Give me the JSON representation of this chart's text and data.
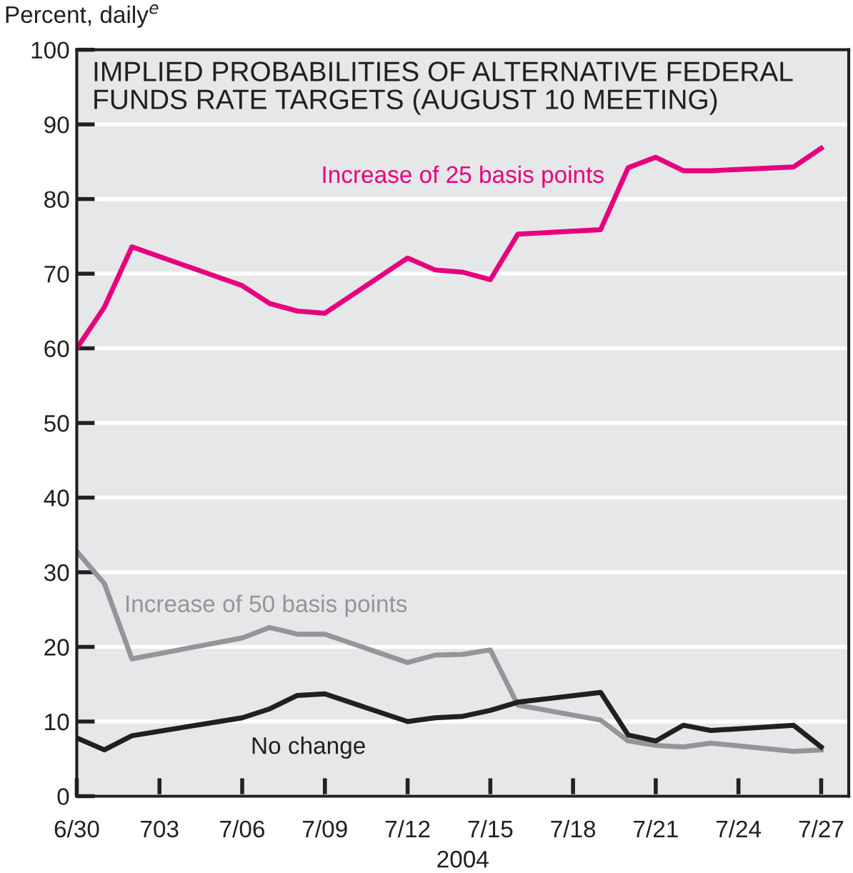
{
  "chart_data": {
    "type": "line",
    "title": "IMPLIED PROBABILITIES OF ALTERNATIVE FEDERAL\nFUNDS RATE TARGETS (AUGUST 10 MEETING)",
    "ylabel": "Percent, daily$^{e}$",
    "xlabel": "2004",
    "x": [
      "2004-06-30",
      "2004-07-01",
      "2004-07-02",
      "2004-07-06",
      "2004-07-07",
      "2004-07-08",
      "2004-07-09",
      "2004-07-12",
      "2004-07-13",
      "2004-07-14",
      "2004-07-15",
      "2004-07-16",
      "2004-07-19",
      "2004-07-20",
      "2004-07-21",
      "2004-07-22",
      "2004-07-23",
      "2004-07-26",
      "2004-07-27"
    ],
    "series": [
      {
        "name": "Increase of 25 basis points",
        "color": "#e6007e",
        "values": [
          60,
          65.5,
          73.6,
          68.4,
          66.0,
          65.0,
          64.7,
          72.1,
          70.5,
          70.2,
          69.2,
          75.3,
          75.9,
          84.2,
          85.6,
          83.8,
          83.8,
          84.3,
          86.8
        ]
      },
      {
        "name": "Increase of 50 basis points",
        "color": "#939598",
        "values": [
          32.8,
          28.5,
          18.4,
          21.2,
          22.6,
          21.7,
          21.7,
          17.9,
          18.9,
          19.0,
          19.6,
          12.2,
          10.2,
          7.4,
          6.8,
          6.6,
          7.1,
          6.0,
          6.2
        ]
      },
      {
        "name": "No change",
        "color": "#231f20",
        "values": [
          7.8,
          6.2,
          8.1,
          10.5,
          11.7,
          13.5,
          13.7,
          10.0,
          10.5,
          10.7,
          11.5,
          12.6,
          13.9,
          8.2,
          7.4,
          9.5,
          8.8,
          9.5,
          6.6
        ]
      }
    ],
    "xlim": [
      "2004-06-30",
      "2004-07-28"
    ],
    "xticks": [
      {
        "value": "2004-06-30",
        "label": "6/30"
      },
      {
        "value": "2004-07-03",
        "label": "703"
      },
      {
        "value": "2004-07-06",
        "label": "7/06"
      },
      {
        "value": "2004-07-09",
        "label": "7/09"
      },
      {
        "value": "2004-07-12",
        "label": "7/12"
      },
      {
        "value": "2004-07-15",
        "label": "7/15"
      },
      {
        "value": "2004-07-18",
        "label": "7/18"
      },
      {
        "value": "2004-07-21",
        "label": "7/21"
      },
      {
        "value": "2004-07-24",
        "label": "7/24"
      },
      {
        "value": "2004-07-27",
        "label": "7/27"
      }
    ],
    "ylim": [
      0,
      100
    ],
    "yticks": [
      0,
      10,
      20,
      30,
      40,
      50,
      60,
      70,
      80,
      90,
      100
    ],
    "grid": "y",
    "legend": false,
    "marker": "none",
    "line_style": "solid"
  }
}
